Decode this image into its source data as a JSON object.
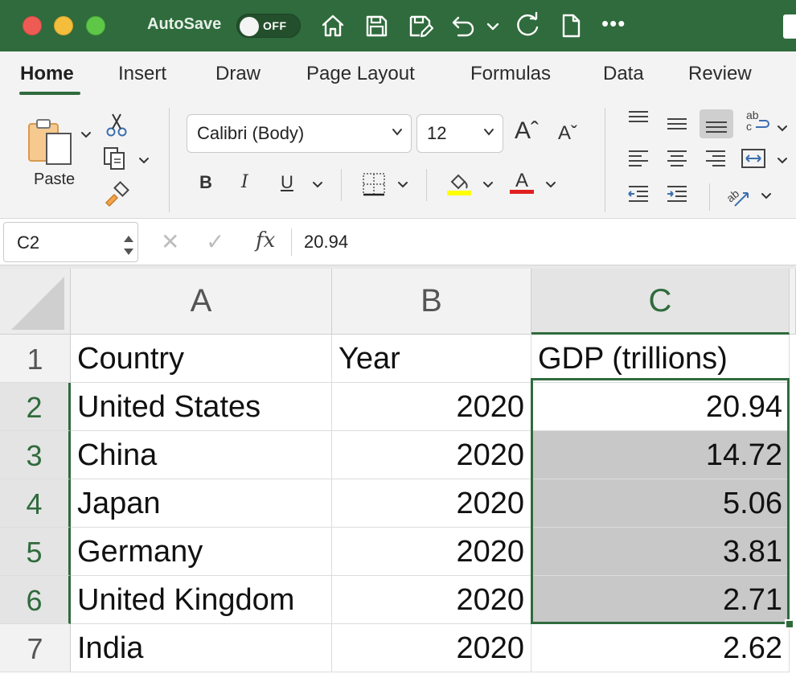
{
  "titlebar": {
    "autosave_label": "AutoSave",
    "autosave_state": "OFF",
    "more_label": "•••"
  },
  "ribbon": {
    "tabs": [
      {
        "label": "Home",
        "active": true
      },
      {
        "label": "Insert"
      },
      {
        "label": "Draw"
      },
      {
        "label": "Page Layout"
      },
      {
        "label": "Formulas"
      },
      {
        "label": "Data"
      },
      {
        "label": "Review"
      }
    ],
    "paste_label": "Paste",
    "font_name": "Calibri (Body)",
    "font_size": "12",
    "grow_font": "Aˆ",
    "shrink_font": "Aˇ",
    "bold": "B",
    "italic": "I",
    "underline": "U",
    "fill_color": "#ffff00",
    "font_color": "#e02020",
    "font_color_glyph": "A"
  },
  "formula_bar": {
    "name_box": "C2",
    "cancel": "✕",
    "enter": "✓",
    "fx": "fx",
    "value": "20.94"
  },
  "sheet": {
    "columns": [
      "A",
      "B",
      "C"
    ],
    "selected_column": "C",
    "rows": [
      {
        "n": "1",
        "a": "Country",
        "b": "Year",
        "c": "GDP (trillions)"
      },
      {
        "n": "2",
        "a": "United States",
        "b": "2020",
        "c": "20.94"
      },
      {
        "n": "3",
        "a": "China",
        "b": "2020",
        "c": "14.72"
      },
      {
        "n": "4",
        "a": "Japan",
        "b": "2020",
        "c": "5.06"
      },
      {
        "n": "5",
        "a": "Germany",
        "b": "2020",
        "c": "3.81"
      },
      {
        "n": "6",
        "a": "United Kingdom",
        "b": "2020",
        "c": "2.71"
      },
      {
        "n": "7",
        "a": "India",
        "b": "2020",
        "c": "2.62"
      }
    ],
    "selected_range": "C2:C6",
    "active_cell": "C2"
  },
  "colors": {
    "excel_green": "#2f6b3c",
    "selection_fill": "#c8c8c8"
  }
}
